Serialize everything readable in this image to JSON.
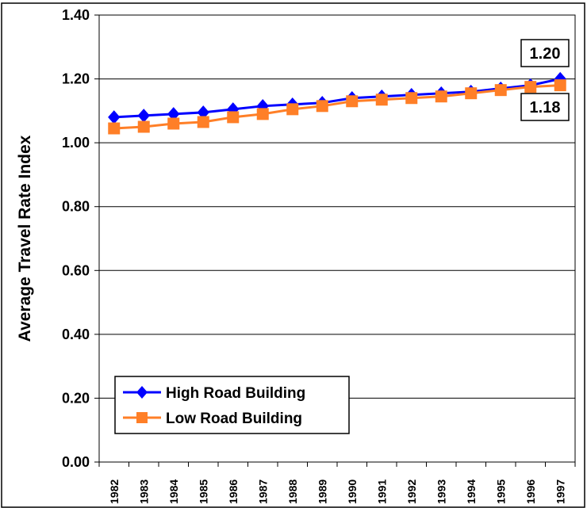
{
  "chart_data": {
    "type": "line",
    "title": "",
    "xlabel": "",
    "ylabel": "Average Travel Rate Index",
    "ylim": [
      0,
      1.4
    ],
    "yticks": [
      "0.00",
      "0.20",
      "0.40",
      "0.60",
      "0.80",
      "1.00",
      "1.20",
      "1.40"
    ],
    "grid": true,
    "legend_position": "lower-left",
    "categories": [
      "1982",
      "1983",
      "1984",
      "1985",
      "1986",
      "1987",
      "1988",
      "1989",
      "1990",
      "1991",
      "1992",
      "1993",
      "1994",
      "1995",
      "1996",
      "1997"
    ],
    "series": [
      {
        "name": "High Road Building",
        "color": "#0000ff",
        "marker": "diamond",
        "values": [
          1.08,
          1.085,
          1.09,
          1.095,
          1.105,
          1.115,
          1.12,
          1.125,
          1.14,
          1.145,
          1.15,
          1.155,
          1.16,
          1.17,
          1.18,
          1.2
        ]
      },
      {
        "name": "Low Road Building",
        "color": "#ff7f27",
        "marker": "square",
        "values": [
          1.045,
          1.05,
          1.06,
          1.065,
          1.08,
          1.09,
          1.105,
          1.115,
          1.13,
          1.135,
          1.14,
          1.145,
          1.155,
          1.165,
          1.175,
          1.18
        ]
      }
    ],
    "annotations": [
      "1.20",
      "1.18"
    ]
  }
}
